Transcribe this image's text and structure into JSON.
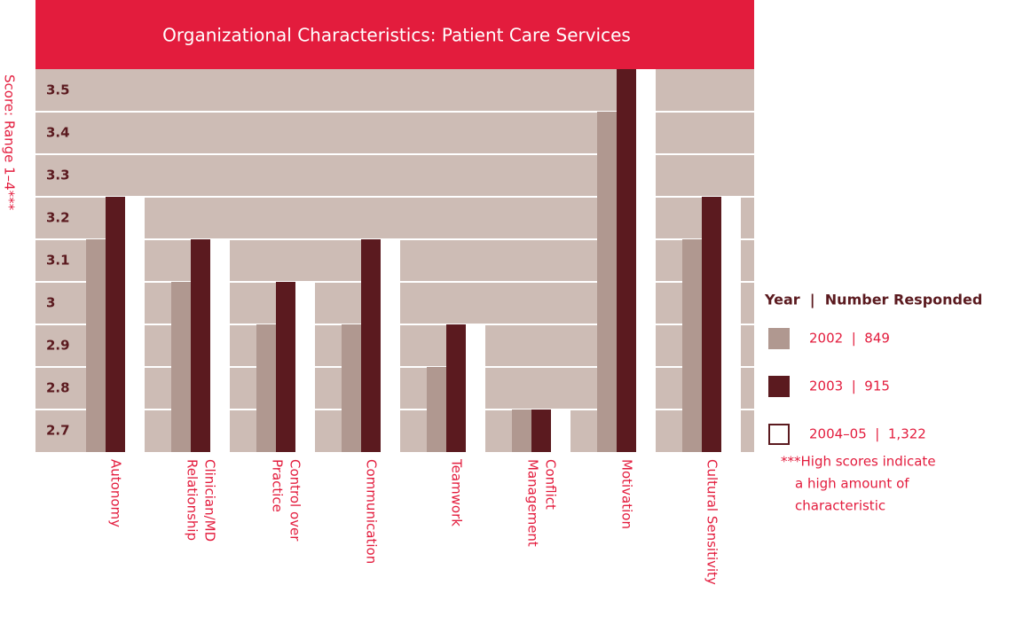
{
  "chart_data": {
    "type": "bar",
    "title": "Organizational Characteristics: Patient Care Services",
    "y_label": "Score: Range 1–4***",
    "categories": [
      [
        "Autonomy"
      ],
      [
        "Clinician/MD",
        "Relationship"
      ],
      [
        "Control over",
        "Practice"
      ],
      [
        "Communication"
      ],
      [
        "Teamwork"
      ],
      [
        "Conflict",
        "Management"
      ],
      [
        "Motivation"
      ],
      [
        "Cultural Sensitivity"
      ]
    ],
    "series": [
      {
        "name": "2002  |  849",
        "color": "#b09890",
        "values": [
          3.15,
          3.05,
          2.95,
          2.95,
          2.85,
          2.75,
          3.45,
          3.15
        ]
      },
      {
        "name": "2003  |  915",
        "color": "#5b1a1f",
        "values": [
          3.25,
          3.15,
          3.05,
          3.15,
          2.95,
          2.75,
          3.55,
          3.25
        ]
      },
      {
        "name": "2004–05  |  1,322",
        "color": "#ffffff",
        "values": [
          3.25,
          3.15,
          3.05,
          3.15,
          2.95,
          2.75,
          3.55,
          3.25
        ]
      }
    ],
    "ylim": [
      2.65,
      3.55
    ],
    "yticks": [
      2.7,
      2.8,
      2.9,
      3.0,
      3.1,
      3.2,
      3.3,
      3.4,
      3.5
    ],
    "grid": true,
    "legend_title": "Year  |  Number Responded",
    "legend_position": "right",
    "note": [
      "***High scores indicate",
      "a high amount of",
      "characteristic"
    ]
  }
}
